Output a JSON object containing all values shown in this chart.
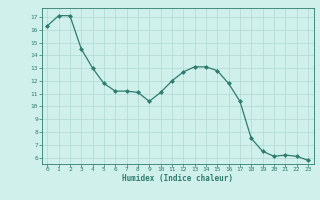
{
  "x": [
    0,
    1,
    2,
    3,
    4,
    5,
    6,
    7,
    8,
    9,
    10,
    11,
    12,
    13,
    14,
    15,
    16,
    17,
    18,
    19,
    20,
    21,
    22,
    23
  ],
  "y": [
    16.3,
    17.1,
    17.1,
    14.5,
    13.0,
    11.8,
    11.2,
    11.2,
    11.1,
    10.4,
    11.1,
    12.0,
    12.7,
    13.1,
    13.1,
    12.8,
    11.8,
    10.4,
    7.5,
    6.5,
    6.1,
    6.2,
    6.1,
    5.8
  ],
  "line_color": "#2e7d6e",
  "marker": "D",
  "marker_size": 2.0,
  "bg_color": "#cff0eb",
  "grid_color": "#b0d8d4",
  "xlabel": "Humidex (Indice chaleur)",
  "xlabel_color": "#2e7d6e",
  "tick_color": "#2e7d6e",
  "ylim": [
    5.5,
    17.7
  ],
  "xlim": [
    -0.5,
    23.5
  ],
  "yticks": [
    6,
    7,
    8,
    9,
    10,
    11,
    12,
    13,
    14,
    15,
    16,
    17
  ],
  "xticks": [
    0,
    1,
    2,
    3,
    4,
    5,
    6,
    7,
    8,
    9,
    10,
    11,
    12,
    13,
    14,
    15,
    16,
    17,
    18,
    19,
    20,
    21,
    22,
    23
  ]
}
